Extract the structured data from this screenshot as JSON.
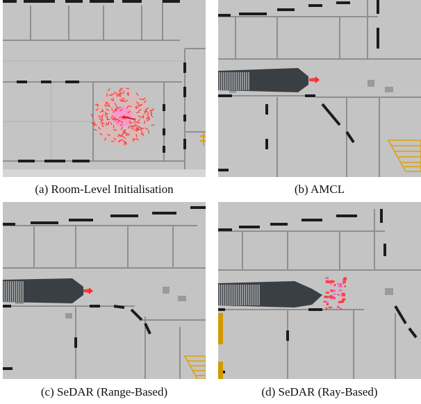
{
  "figure": {
    "panels": [
      {
        "id": "a",
        "caption": "(a) Room-Level Initialisation"
      },
      {
        "id": "b",
        "caption": "(b) AMCL"
      },
      {
        "id": "c",
        "caption": "(c) SeDAR (Range-Based)"
      },
      {
        "id": "d",
        "caption": "(d) SeDAR (Ray-Based)"
      }
    ]
  },
  "colors": {
    "map_background": "#c4c4c4",
    "wall": "#1c1c1c",
    "light_wall": "#8c8c8c",
    "particle": "#ff3b3b",
    "scan": "#3a3f44",
    "stairs": "#e0a000"
  }
}
